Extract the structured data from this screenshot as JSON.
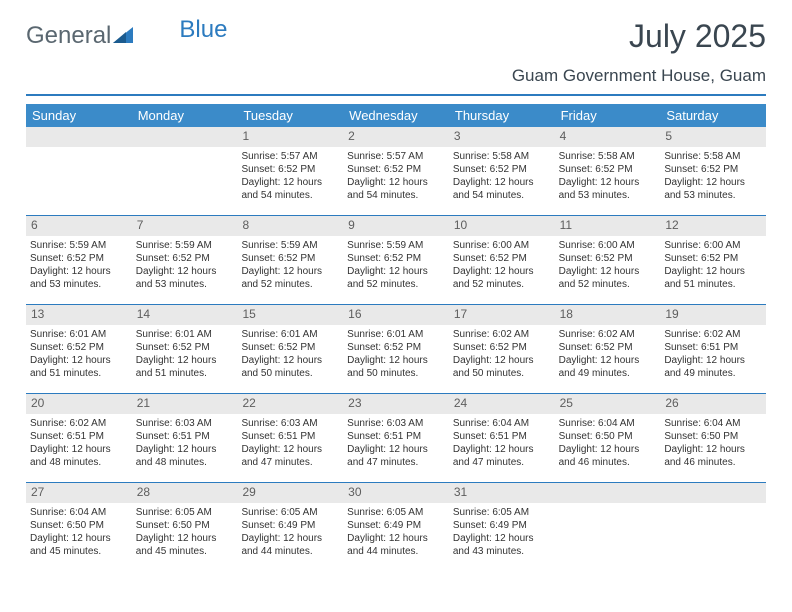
{
  "logo": {
    "text_gray": "General",
    "text_blue": "Blue"
  },
  "header": {
    "title": "July 2025",
    "subtitle": "Guam Government House, Guam"
  },
  "colors": {
    "header_bar": "#3b8bc9",
    "accent": "#2c7bbf",
    "daynum_bg": "#e9e9e9",
    "text": "#333333",
    "logo_gray": "#5a6770",
    "logo_blue": "#2c7bbf",
    "title_color": "#3a4650",
    "background": "#ffffff"
  },
  "typography": {
    "title_fontsize": 32,
    "subtitle_fontsize": 17,
    "dayheader_fontsize": 13,
    "daynum_fontsize": 12,
    "cell_fontsize": 10
  },
  "day_names": [
    "Sunday",
    "Monday",
    "Tuesday",
    "Wednesday",
    "Thursday",
    "Friday",
    "Saturday"
  ],
  "weeks": [
    [
      {
        "num": "",
        "sunrise": "",
        "sunset": "",
        "daylight": ""
      },
      {
        "num": "",
        "sunrise": "",
        "sunset": "",
        "daylight": ""
      },
      {
        "num": "1",
        "sunrise": "5:57 AM",
        "sunset": "6:52 PM",
        "daylight": "12 hours and 54 minutes."
      },
      {
        "num": "2",
        "sunrise": "5:57 AM",
        "sunset": "6:52 PM",
        "daylight": "12 hours and 54 minutes."
      },
      {
        "num": "3",
        "sunrise": "5:58 AM",
        "sunset": "6:52 PM",
        "daylight": "12 hours and 54 minutes."
      },
      {
        "num": "4",
        "sunrise": "5:58 AM",
        "sunset": "6:52 PM",
        "daylight": "12 hours and 53 minutes."
      },
      {
        "num": "5",
        "sunrise": "5:58 AM",
        "sunset": "6:52 PM",
        "daylight": "12 hours and 53 minutes."
      }
    ],
    [
      {
        "num": "6",
        "sunrise": "5:59 AM",
        "sunset": "6:52 PM",
        "daylight": "12 hours and 53 minutes."
      },
      {
        "num": "7",
        "sunrise": "5:59 AM",
        "sunset": "6:52 PM",
        "daylight": "12 hours and 53 minutes."
      },
      {
        "num": "8",
        "sunrise": "5:59 AM",
        "sunset": "6:52 PM",
        "daylight": "12 hours and 52 minutes."
      },
      {
        "num": "9",
        "sunrise": "5:59 AM",
        "sunset": "6:52 PM",
        "daylight": "12 hours and 52 minutes."
      },
      {
        "num": "10",
        "sunrise": "6:00 AM",
        "sunset": "6:52 PM",
        "daylight": "12 hours and 52 minutes."
      },
      {
        "num": "11",
        "sunrise": "6:00 AM",
        "sunset": "6:52 PM",
        "daylight": "12 hours and 52 minutes."
      },
      {
        "num": "12",
        "sunrise": "6:00 AM",
        "sunset": "6:52 PM",
        "daylight": "12 hours and 51 minutes."
      }
    ],
    [
      {
        "num": "13",
        "sunrise": "6:01 AM",
        "sunset": "6:52 PM",
        "daylight": "12 hours and 51 minutes."
      },
      {
        "num": "14",
        "sunrise": "6:01 AM",
        "sunset": "6:52 PM",
        "daylight": "12 hours and 51 minutes."
      },
      {
        "num": "15",
        "sunrise": "6:01 AM",
        "sunset": "6:52 PM",
        "daylight": "12 hours and 50 minutes."
      },
      {
        "num": "16",
        "sunrise": "6:01 AM",
        "sunset": "6:52 PM",
        "daylight": "12 hours and 50 minutes."
      },
      {
        "num": "17",
        "sunrise": "6:02 AM",
        "sunset": "6:52 PM",
        "daylight": "12 hours and 50 minutes."
      },
      {
        "num": "18",
        "sunrise": "6:02 AM",
        "sunset": "6:52 PM",
        "daylight": "12 hours and 49 minutes."
      },
      {
        "num": "19",
        "sunrise": "6:02 AM",
        "sunset": "6:51 PM",
        "daylight": "12 hours and 49 minutes."
      }
    ],
    [
      {
        "num": "20",
        "sunrise": "6:02 AM",
        "sunset": "6:51 PM",
        "daylight": "12 hours and 48 minutes."
      },
      {
        "num": "21",
        "sunrise": "6:03 AM",
        "sunset": "6:51 PM",
        "daylight": "12 hours and 48 minutes."
      },
      {
        "num": "22",
        "sunrise": "6:03 AM",
        "sunset": "6:51 PM",
        "daylight": "12 hours and 47 minutes."
      },
      {
        "num": "23",
        "sunrise": "6:03 AM",
        "sunset": "6:51 PM",
        "daylight": "12 hours and 47 minutes."
      },
      {
        "num": "24",
        "sunrise": "6:04 AM",
        "sunset": "6:51 PM",
        "daylight": "12 hours and 47 minutes."
      },
      {
        "num": "25",
        "sunrise": "6:04 AM",
        "sunset": "6:50 PM",
        "daylight": "12 hours and 46 minutes."
      },
      {
        "num": "26",
        "sunrise": "6:04 AM",
        "sunset": "6:50 PM",
        "daylight": "12 hours and 46 minutes."
      }
    ],
    [
      {
        "num": "27",
        "sunrise": "6:04 AM",
        "sunset": "6:50 PM",
        "daylight": "12 hours and 45 minutes."
      },
      {
        "num": "28",
        "sunrise": "6:05 AM",
        "sunset": "6:50 PM",
        "daylight": "12 hours and 45 minutes."
      },
      {
        "num": "29",
        "sunrise": "6:05 AM",
        "sunset": "6:49 PM",
        "daylight": "12 hours and 44 minutes."
      },
      {
        "num": "30",
        "sunrise": "6:05 AM",
        "sunset": "6:49 PM",
        "daylight": "12 hours and 44 minutes."
      },
      {
        "num": "31",
        "sunrise": "6:05 AM",
        "sunset": "6:49 PM",
        "daylight": "12 hours and 43 minutes."
      },
      {
        "num": "",
        "sunrise": "",
        "sunset": "",
        "daylight": ""
      },
      {
        "num": "",
        "sunrise": "",
        "sunset": "",
        "daylight": ""
      }
    ]
  ],
  "labels": {
    "sunrise_prefix": "Sunrise: ",
    "sunset_prefix": "Sunset: ",
    "daylight_prefix": "Daylight: "
  }
}
